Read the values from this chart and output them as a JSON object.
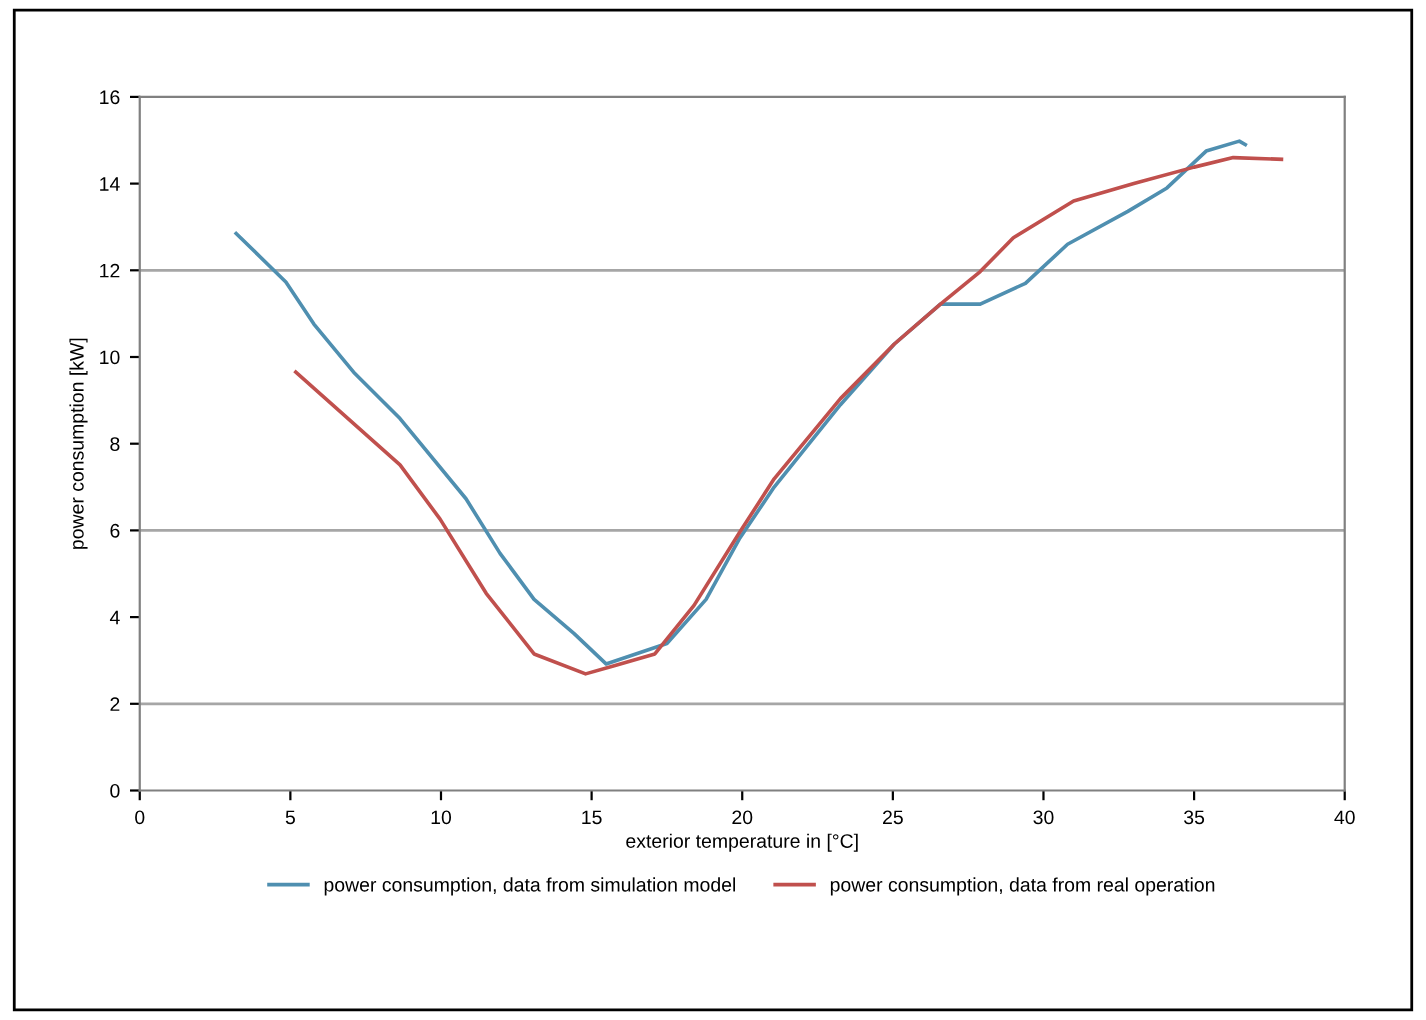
{
  "chart_data": {
    "type": "line",
    "xlabel": "exterior temperature in [°C]",
    "ylabel": "power consumption [kW]",
    "xlim": [
      0,
      40
    ],
    "xticks": [
      0,
      5,
      10,
      15,
      20,
      25,
      30,
      35,
      40
    ],
    "ylim": [
      0,
      16
    ],
    "yticks": [
      0,
      2,
      4,
      6,
      8,
      10,
      12,
      14,
      16
    ],
    "legend": "bottom",
    "marker": "none",
    "line_style": "solid",
    "ref_lines": [
      {
        "axis": "y",
        "value": 2,
        "color": "#a6a6a6"
      },
      {
        "axis": "y",
        "value": 6,
        "color": "#a6a6a6"
      },
      {
        "axis": "y",
        "value": 12,
        "color": "#a6a6a6"
      }
    ],
    "series": [
      {
        "name": "power consumption, data from simulation model",
        "color": "#4f8fb0",
        "x": [
          3.2,
          4.85,
          5.78,
          7.1,
          8.64,
          10.83,
          11.96,
          13.09,
          14.42,
          15.48,
          17.5,
          18.8,
          19.9,
          21.06,
          23.26,
          25.05,
          26.58,
          27.9,
          29.4,
          30.8,
          32.8,
          34.1,
          35.4,
          36.5,
          36.7
        ],
        "values": [
          12.85,
          11.73,
          10.76,
          9.65,
          8.58,
          6.73,
          5.47,
          4.41,
          3.62,
          2.92,
          3.39,
          4.41,
          5.8,
          7.0,
          8.9,
          10.3,
          11.22,
          11.22,
          11.7,
          12.6,
          13.36,
          13.9,
          14.75,
          14.98,
          14.9
        ]
      },
      {
        "name": "power consumption, data from real operation",
        "color": "#c0504d",
        "x": [
          5.18,
          8.64,
          9.97,
          11.5,
          13.09,
          14.8,
          15.75,
          17.1,
          18.4,
          19.9,
          21.06,
          23.26,
          25.05,
          26.58,
          27.9,
          29.0,
          31.0,
          33.0,
          35.0,
          36.3,
          37.9
        ],
        "values": [
          9.65,
          7.51,
          6.26,
          4.55,
          3.15,
          2.69,
          2.88,
          3.15,
          4.27,
          5.94,
          7.19,
          9.04,
          10.3,
          11.22,
          11.97,
          12.75,
          13.6,
          14.0,
          14.38,
          14.6,
          14.56
        ]
      }
    ]
  }
}
